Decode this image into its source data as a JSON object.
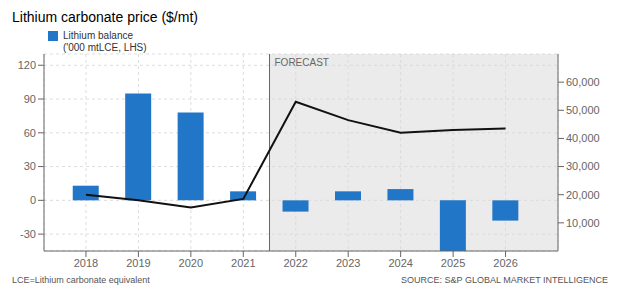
{
  "chart_data": {
    "type": "bar",
    "title": "Lithium carbonate price ($/mt)",
    "x": [
      2018,
      2019,
      2020,
      2021,
      2022,
      2023,
      2024,
      2025,
      2026
    ],
    "xlim": [
      2017.2,
      2027.0
    ],
    "xticks": [
      2018,
      2019,
      2020,
      2021,
      2022,
      2023,
      2024,
      2025,
      2026
    ],
    "series": [
      {
        "name": "Lithium balance\n('000 mtLCE, LHS)",
        "type": "bar",
        "color": "#2176c7",
        "values": [
          13,
          95,
          78,
          8,
          -10,
          8,
          10,
          -45,
          -18
        ]
      },
      {
        "type": "line",
        "axis": "y2",
        "color": "#111111",
        "values": [
          20000,
          18000,
          15500,
          18500,
          53000,
          46500,
          42000,
          43000,
          43500
        ]
      }
    ],
    "ylim": [
      -45,
      130
    ],
    "yticks": [
      -30,
      0,
      30,
      60,
      90,
      120
    ],
    "y2lim": [
      0,
      70000
    ],
    "y2ticks": [
      {
        "value": 10000,
        "label": "10,000"
      },
      {
        "value": 20000,
        "label": "20,000"
      },
      {
        "value": 30000,
        "label": "30,000"
      },
      {
        "value": 40000,
        "label": "40,000"
      },
      {
        "value": 50000,
        "label": "50,000"
      },
      {
        "value": 60000,
        "label": "60,000"
      }
    ],
    "grid": true,
    "legend": "upper left",
    "annotations": [
      {
        "text": "FORECAST",
        "x": 2021.5
      },
      {
        "text": "LCE=Lithium carbonate equivalent"
      },
      {
        "text": "SOURCE: S&P GLOBAL MARKET INTELLIGENCE"
      }
    ]
  }
}
